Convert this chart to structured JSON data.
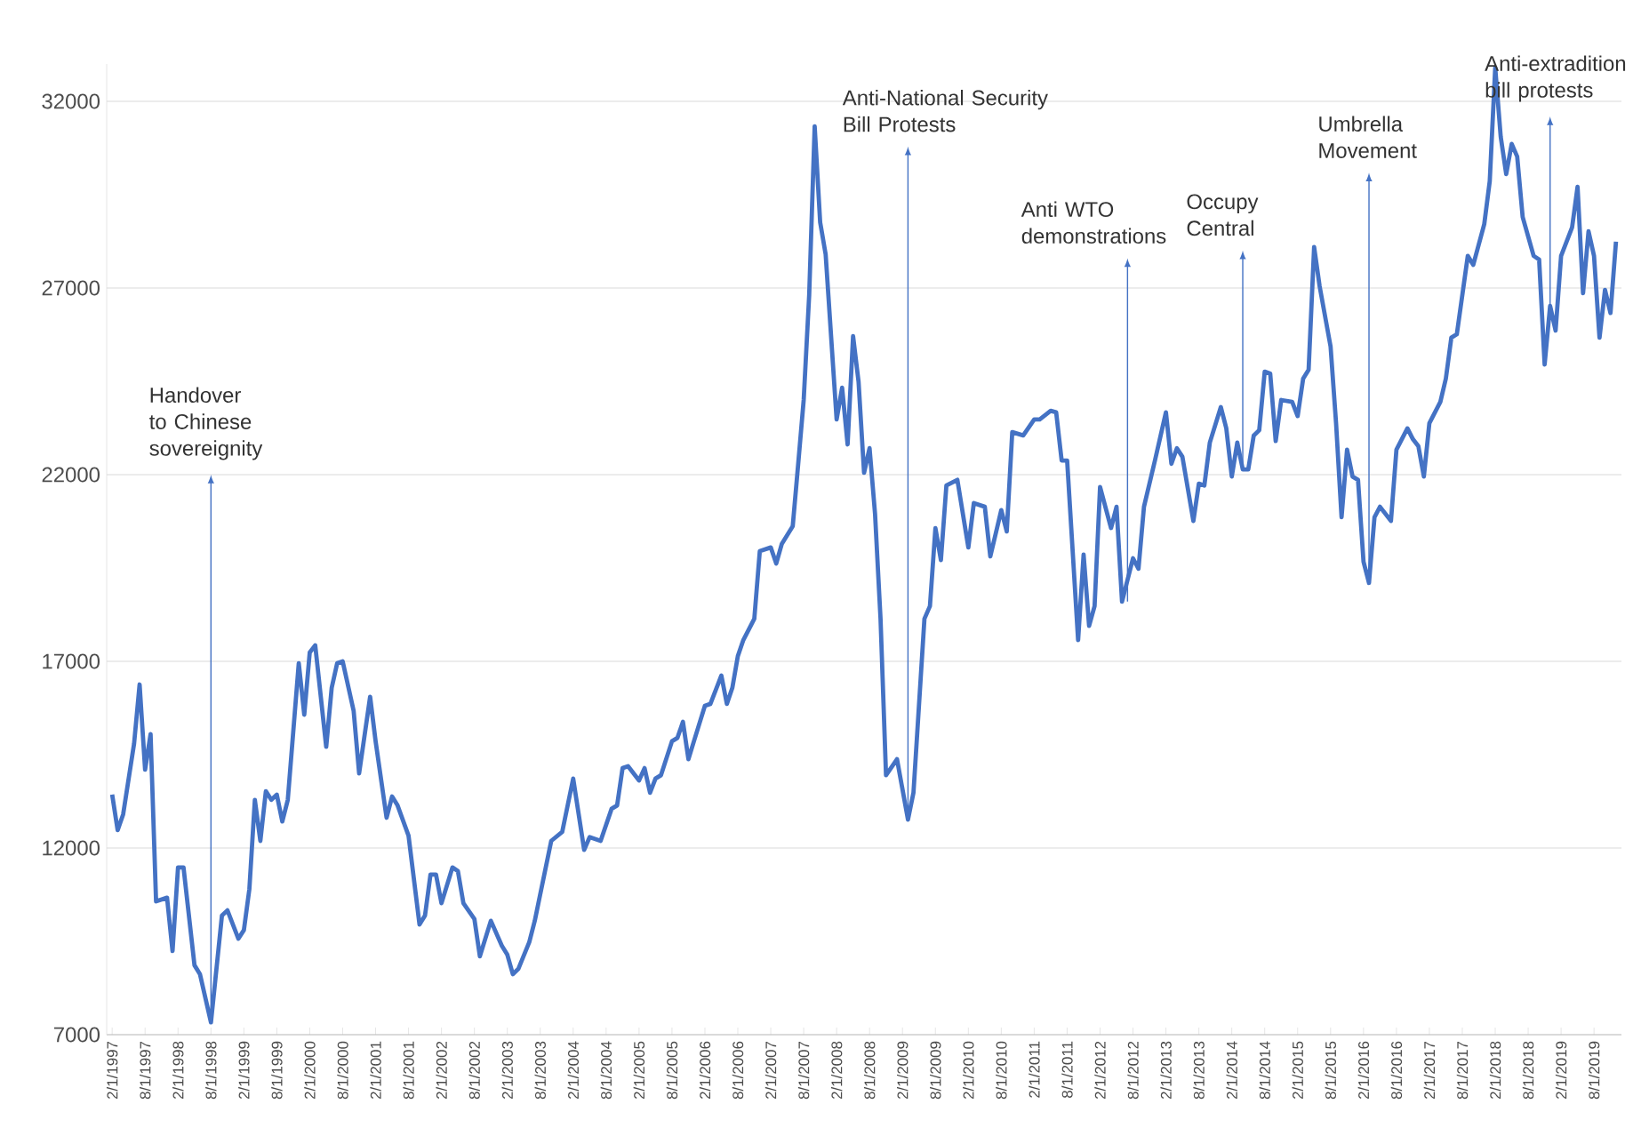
{
  "chart_data": {
    "type": "line",
    "x": [
      "1997-02",
      "1997-03",
      "1997-04",
      "1997-06",
      "1997-07",
      "1997-08",
      "1997-09",
      "1997-10",
      "1997-12",
      "1998-01",
      "1998-02",
      "1998-03",
      "1998-05",
      "1998-06",
      "1998-08",
      "1998-10",
      "1998-11",
      "1999-01",
      "1999-02",
      "1999-03",
      "1999-04",
      "1999-05",
      "1999-06",
      "1999-07",
      "1999-08",
      "1999-09",
      "1999-10",
      "1999-12",
      "2000-01",
      "2000-02",
      "2000-03",
      "2000-05",
      "2000-06",
      "2000-07",
      "2000-08",
      "2000-10",
      "2000-11",
      "2001-01",
      "2001-02",
      "2001-04",
      "2001-05",
      "2001-06",
      "2001-08",
      "2001-10",
      "2001-11",
      "2001-12",
      "2002-01",
      "2002-02",
      "2002-04",
      "2002-05",
      "2002-06",
      "2002-08",
      "2002-09",
      "2002-11",
      "2003-01",
      "2003-02",
      "2003-03",
      "2003-04",
      "2003-06",
      "2003-07",
      "2003-10",
      "2003-12",
      "2004-02",
      "2004-04",
      "2004-05",
      "2004-07",
      "2004-09",
      "2004-10",
      "2004-11",
      "2004-12",
      "2005-02",
      "2005-03",
      "2005-04",
      "2005-05",
      "2005-06",
      "2005-08",
      "2005-09",
      "2005-10",
      "2005-11",
      "2005-12",
      "2006-02",
      "2006-03",
      "2006-05",
      "2006-06",
      "2006-07",
      "2006-08",
      "2006-09",
      "2006-11",
      "2006-12",
      "2007-02",
      "2007-03",
      "2007-04",
      "2007-06",
      "2007-07",
      "2007-08",
      "2007-09",
      "2007-10",
      "2007-11",
      "2007-12",
      "2008-02",
      "2008-03",
      "2008-04",
      "2008-05",
      "2008-06",
      "2008-07",
      "2008-08",
      "2008-09",
      "2008-10",
      "2008-11",
      "2009-01",
      "2009-03",
      "2009-04",
      "2009-06",
      "2009-07",
      "2009-08",
      "2009-09",
      "2009-10",
      "2009-12",
      "2010-02",
      "2010-03",
      "2010-05",
      "2010-06",
      "2010-08",
      "2010-09",
      "2010-10",
      "2010-12",
      "2011-02",
      "2011-03",
      "2011-05",
      "2011-06",
      "2011-07",
      "2011-08",
      "2011-10",
      "2011-11",
      "2011-12",
      "2012-01",
      "2012-02",
      "2012-04",
      "2012-05",
      "2012-06",
      "2012-08",
      "2012-09",
      "2012-10",
      "2012-12",
      "2013-02",
      "2013-03",
      "2013-04",
      "2013-05",
      "2013-07",
      "2013-08",
      "2013-09",
      "2013-10",
      "2013-12",
      "2014-01",
      "2014-02",
      "2014-03",
      "2014-04",
      "2014-05",
      "2014-06",
      "2014-07",
      "2014-08",
      "2014-09",
      "2014-10",
      "2014-11",
      "2015-01",
      "2015-02",
      "2015-03",
      "2015-04",
      "2015-05",
      "2015-06",
      "2015-08",
      "2015-09",
      "2015-10",
      "2015-11",
      "2015-12",
      "2016-01",
      "2016-02",
      "2016-03",
      "2016-04",
      "2016-05",
      "2016-07",
      "2016-08",
      "2016-10",
      "2016-11",
      "2016-12",
      "2017-01",
      "2017-02",
      "2017-04",
      "2017-05",
      "2017-06",
      "2017-07",
      "2017-09",
      "2017-10",
      "2017-12",
      "2018-01",
      "2018-02",
      "2018-03",
      "2018-04",
      "2018-05",
      "2018-06",
      "2018-07",
      "2018-09",
      "2018-10",
      "2018-11",
      "2018-12",
      "2019-01",
      "2019-02",
      "2019-04",
      "2019-05",
      "2019-06",
      "2019-07",
      "2019-08",
      "2019-09",
      "2019-10",
      "2019-11",
      "2019-12"
    ],
    "series": [
      {
        "color": "#4472c4",
        "values": [
          13430,
          12480,
          12900,
          14800,
          16380,
          14100,
          15050,
          10570,
          10670,
          9240,
          11480,
          11480,
          8860,
          8620,
          7330,
          10190,
          10330,
          9570,
          9800,
          10900,
          13290,
          12190,
          13520,
          13290,
          13430,
          12710,
          13290,
          16950,
          15570,
          17240,
          17430,
          14710,
          16290,
          16950,
          17000,
          15670,
          14000,
          16050,
          14860,
          12810,
          13380,
          13140,
          12330,
          9950,
          10190,
          11290,
          11290,
          10520,
          11480,
          11380,
          10520,
          10100,
          9100,
          10050,
          9380,
          9140,
          8620,
          8760,
          9480,
          10050,
          12190,
          12430,
          13860,
          11950,
          12290,
          12190,
          13050,
          13140,
          14140,
          14190,
          13810,
          14140,
          13480,
          13860,
          13950,
          14860,
          14950,
          15380,
          14380,
          14860,
          15810,
          15860,
          16620,
          15860,
          16290,
          17140,
          17570,
          18140,
          19950,
          20050,
          19620,
          20140,
          20620,
          22290,
          24000,
          26810,
          31330,
          28760,
          27900,
          23480,
          24330,
          22810,
          25710,
          24480,
          22050,
          22710,
          20950,
          18140,
          13950,
          14380,
          12760,
          13480,
          18140,
          18480,
          20570,
          19710,
          21710,
          21860,
          20050,
          21240,
          21140,
          19810,
          21050,
          20480,
          23140,
          23050,
          23480,
          23480,
          23710,
          23670,
          22380,
          22380,
          17570,
          19860,
          17950,
          18480,
          21670,
          20570,
          21140,
          18600,
          19760,
          19480,
          21140,
          22380,
          23670,
          22290,
          22710,
          22480,
          20760,
          21760,
          21710,
          22860,
          23810,
          23240,
          21950,
          22860,
          22140,
          22140,
          23050,
          23190,
          24760,
          24710,
          22900,
          24000,
          23950,
          23570,
          24570,
          24810,
          28100,
          27050,
          25430,
          23380,
          20860,
          22670,
          21950,
          21860,
          19670,
          19100,
          20860,
          21140,
          20760,
          22670,
          23240,
          22950,
          22760,
          21950,
          23380,
          23950,
          24570,
          25670,
          25760,
          27860,
          27620,
          28710,
          29860,
          32900,
          31050,
          30050,
          30860,
          30520,
          28900,
          27860,
          27760,
          24950,
          26520,
          25860,
          27860,
          28620,
          29710,
          26860,
          28520,
          27860,
          25670,
          26950,
          26330,
          28240
        ]
      }
    ],
    "xlim": [
      "1997-01",
      "2020-01"
    ],
    "xticks": [
      {
        "value": "1997-02",
        "label": "2/1/1997"
      },
      {
        "value": "1997-08",
        "label": "8/1/1997"
      },
      {
        "value": "1998-02",
        "label": "2/1/1998"
      },
      {
        "value": "1998-08",
        "label": "8/1/1998"
      },
      {
        "value": "1999-02",
        "label": "2/1/1999"
      },
      {
        "value": "1999-08",
        "label": "8/1/1999"
      },
      {
        "value": "2000-02",
        "label": "2/1/2000"
      },
      {
        "value": "2000-08",
        "label": "8/1/2000"
      },
      {
        "value": "2001-02",
        "label": "2/1/2001"
      },
      {
        "value": "2001-08",
        "label": "8/1/2001"
      },
      {
        "value": "2002-02",
        "label": "2/1/2002"
      },
      {
        "value": "2002-08",
        "label": "8/1/2002"
      },
      {
        "value": "2003-02",
        "label": "2/1/2003"
      },
      {
        "value": "2003-08",
        "label": "8/1/2003"
      },
      {
        "value": "2004-02",
        "label": "2/1/2004"
      },
      {
        "value": "2004-08",
        "label": "8/1/2004"
      },
      {
        "value": "2005-02",
        "label": "2/1/2005"
      },
      {
        "value": "2005-08",
        "label": "8/1/2005"
      },
      {
        "value": "2006-02",
        "label": "2/1/2006"
      },
      {
        "value": "2006-08",
        "label": "8/1/2006"
      },
      {
        "value": "2007-02",
        "label": "2/1/2007"
      },
      {
        "value": "2007-08",
        "label": "8/1/2007"
      },
      {
        "value": "2008-02",
        "label": "2/1/2008"
      },
      {
        "value": "2008-08",
        "label": "8/1/2008"
      },
      {
        "value": "2009-02",
        "label": "2/1/2009"
      },
      {
        "value": "2009-08",
        "label": "8/1/2009"
      },
      {
        "value": "2010-02",
        "label": "2/1/2010"
      },
      {
        "value": "2010-08",
        "label": "8/1/2010"
      },
      {
        "value": "2011-02",
        "label": "2/1/2011"
      },
      {
        "value": "2011-08",
        "label": "8/1/2011"
      },
      {
        "value": "2012-02",
        "label": "2/1/2012"
      },
      {
        "value": "2012-08",
        "label": "8/1/2012"
      },
      {
        "value": "2013-02",
        "label": "2/1/2013"
      },
      {
        "value": "2013-08",
        "label": "8/1/2013"
      },
      {
        "value": "2014-02",
        "label": "2/1/2014"
      },
      {
        "value": "2014-08",
        "label": "8/1/2014"
      },
      {
        "value": "2015-02",
        "label": "2/1/2015"
      },
      {
        "value": "2015-08",
        "label": "8/1/2015"
      },
      {
        "value": "2016-02",
        "label": "2/1/2016"
      },
      {
        "value": "2016-08",
        "label": "8/1/2016"
      },
      {
        "value": "2017-02",
        "label": "2/1/2017"
      },
      {
        "value": "2017-08",
        "label": "8/1/2017"
      },
      {
        "value": "2018-02",
        "label": "2/1/2018"
      },
      {
        "value": "2018-08",
        "label": "8/1/2018"
      },
      {
        "value": "2019-02",
        "label": "2/1/2019"
      },
      {
        "value": "2019-08",
        "label": "8/1/2019"
      }
    ],
    "ylim": [
      7000,
      33000
    ],
    "yticks": [
      7000,
      12000,
      17000,
      22000,
      27000,
      32000
    ],
    "grid": "y",
    "legend": false,
    "marker": "none",
    "line_style": "solid",
    "ref_lines": [
      {
        "axis": "x",
        "value": "1998-08",
        "label": "Handover to Chinese sovereignity"
      },
      {
        "axis": "x",
        "value": "2009-03",
        "label": "Anti-National Security Bill Protests"
      },
      {
        "axis": "x",
        "value": "2012-07",
        "label": "Anti WTO demonstrations"
      },
      {
        "axis": "x",
        "value": "2014-04",
        "label": "Occupy Central"
      },
      {
        "axis": "x",
        "value": "2016-03",
        "label": "Umbrella Movement"
      },
      {
        "axis": "x",
        "value": "2018-12",
        "label": "Anti-extradition bill protests"
      }
    ]
  }
}
